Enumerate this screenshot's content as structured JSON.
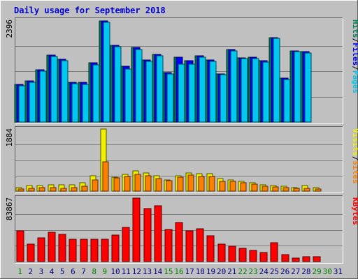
{
  "chart_data": {
    "type": "bar",
    "title": "Daily usage for September 2018",
    "days": [
      "1",
      "2",
      "3",
      "4",
      "5",
      "6",
      "7",
      "8",
      "9",
      "10",
      "11",
      "12",
      "13",
      "14",
      "15",
      "16",
      "17",
      "18",
      "19",
      "20",
      "21",
      "22",
      "23",
      "24",
      "25",
      "26",
      "27",
      "28",
      "29",
      "30",
      "31"
    ],
    "weekend_days": [
      "1",
      "8",
      "9",
      "15",
      "16",
      "22",
      "23",
      "29",
      "30"
    ],
    "day_colors": {
      "weekday": "#000080",
      "weekend": "#008000"
    },
    "panels": [
      {
        "id": "hits-files-pages",
        "ymax_label": "2396",
        "ymax": 2396,
        "legend": [
          {
            "label": "Hits",
            "color": "#00805c"
          },
          {
            "label": "Files",
            "color": "#0000ff"
          },
          {
            "label": "Pages",
            "color": "#00c8f0"
          }
        ],
        "series": [
          {
            "name": "Hits",
            "color": "#00805c",
            "values": [
              880,
              970,
              1230,
              1580,
              1480,
              930,
              940,
              1400,
              2380,
              1800,
              1310,
              1760,
              1460,
              1600,
              1170,
              1520,
              1450,
              1560,
              1460,
              1140,
              1710,
              1510,
              1520,
              1440,
              1990,
              1030,
              1670,
              1660,
              0,
              0,
              0
            ]
          },
          {
            "name": "Files",
            "color": "#0000ff",
            "values": [
              880,
              970,
              1230,
              1580,
              1480,
              930,
              940,
              1400,
              2380,
              1800,
              1310,
              1760,
              1460,
              1600,
              1170,
              1520,
              1450,
              1560,
              1460,
              1140,
              1710,
              1510,
              1520,
              1440,
              1990,
              1030,
              1670,
              1660,
              0,
              0,
              0
            ]
          },
          {
            "name": "Pages",
            "color": "#00c8f0",
            "values": [
              850,
              940,
              1200,
              1540,
              1450,
              900,
              880,
              1340,
              2350,
              1770,
              1250,
              1700,
              1430,
              1560,
              1140,
              1360,
              1360,
              1520,
              1420,
              1110,
              1680,
              1490,
              1500,
              1410,
              1970,
              1000,
              1650,
              1630,
              0,
              0,
              0
            ]
          }
        ]
      },
      {
        "id": "visits-sites",
        "ymax_label": "1884",
        "ymax": 1884,
        "legend": [
          {
            "label": "Visits",
            "color": "#f0f000"
          },
          {
            "label": "Sites",
            "color": "#ff8000"
          }
        ],
        "series": [
          {
            "name": "Visits",
            "color": "#f0f000",
            "values": [
              110,
              170,
              160,
              190,
              180,
              190,
              250,
              460,
              1884,
              420,
              500,
              610,
              540,
              460,
              330,
              460,
              540,
              530,
              530,
              380,
              340,
              300,
              260,
              190,
              170,
              150,
              110,
              160,
              110,
              0,
              0
            ]
          },
          {
            "name": "Sites",
            "color": "#ff8000",
            "values": [
              70,
              80,
              110,
              110,
              90,
              100,
              150,
              330,
              880,
              400,
              450,
              510,
              460,
              390,
              310,
              430,
              480,
              440,
              450,
              300,
              290,
              260,
              220,
              140,
              120,
              100,
              80,
              90,
              60,
              0,
              0
            ]
          }
        ]
      },
      {
        "id": "kbytes",
        "ymax_label": "83867",
        "ymax": 83867,
        "legend": [
          {
            "label": "KBytes",
            "color": "#ff0000"
          }
        ],
        "series": [
          {
            "name": "KBytes",
            "color": "#ff0000",
            "values": [
              40500,
              22800,
              31200,
              38300,
              35700,
              29100,
              29300,
              29600,
              29800,
              35000,
              45300,
              83867,
              70000,
              73500,
              42300,
              51600,
              41000,
              43400,
              33800,
              23500,
              20700,
              17100,
              14900,
              12100,
              25100,
              9300,
              4600,
              6100,
              6200,
              0,
              0
            ]
          }
        ]
      }
    ]
  }
}
